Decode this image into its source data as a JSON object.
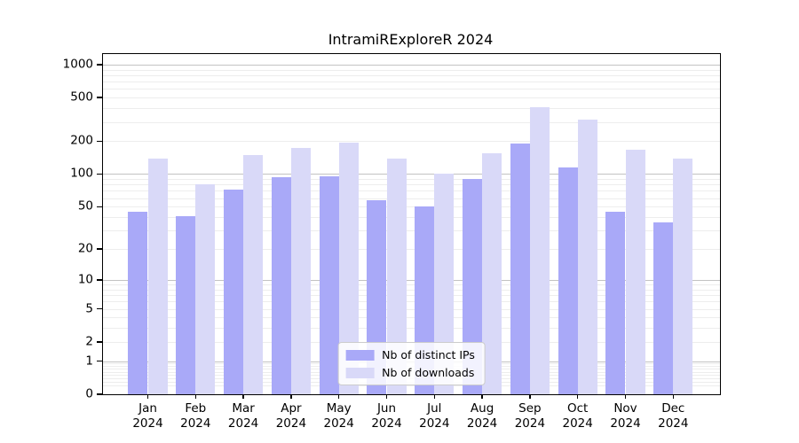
{
  "title": "IntramiRExploreR 2024",
  "legend": {
    "items": [
      {
        "label": "Nb of distinct IPs",
        "color": "#a9a9f8"
      },
      {
        "label": "Nb of downloads",
        "color": "#d9d9f8"
      }
    ]
  },
  "chart_data": {
    "type": "bar",
    "title": "IntramiRExploreR 2024",
    "categories": [
      "Jan 2024",
      "Feb 2024",
      "Mar 2024",
      "Apr 2024",
      "May 2024",
      "Jun 2024",
      "Jul 2024",
      "Aug 2024",
      "Sep 2024",
      "Oct 2024",
      "Nov 2024",
      "Dec 2024"
    ],
    "months": [
      "Jan",
      "Feb",
      "Mar",
      "Apr",
      "May",
      "Jun",
      "Jul",
      "Aug",
      "Sep",
      "Oct",
      "Nov",
      "Dec"
    ],
    "year": "2024",
    "series": [
      {
        "name": "Nb of distinct IPs",
        "color": "#a9a9f8",
        "values": [
          45,
          41,
          72,
          93,
          96,
          57,
          50,
          90,
          192,
          115,
          45,
          36
        ]
      },
      {
        "name": "Nb of downloads",
        "color": "#d9d9f8",
        "values": [
          138,
          80,
          150,
          172,
          194,
          138,
          100,
          154,
          410,
          318,
          168,
          140
        ]
      }
    ],
    "yscale": "log1p",
    "yticks": [
      0,
      1,
      2,
      5,
      10,
      20,
      50,
      100,
      200,
      500,
      1000
    ],
    "major_gridlines": [
      1,
      10,
      100,
      1000
    ],
    "ylim": [
      0,
      1250
    ],
    "grid": "horizontal",
    "legend_position": "lower center",
    "xlabel": "",
    "ylabel": ""
  },
  "colors": {
    "background": "#ffffff",
    "axis": "#000000",
    "grid_minor": "#ededed",
    "grid_major": "#c3c3c3",
    "text": "#000000"
  }
}
